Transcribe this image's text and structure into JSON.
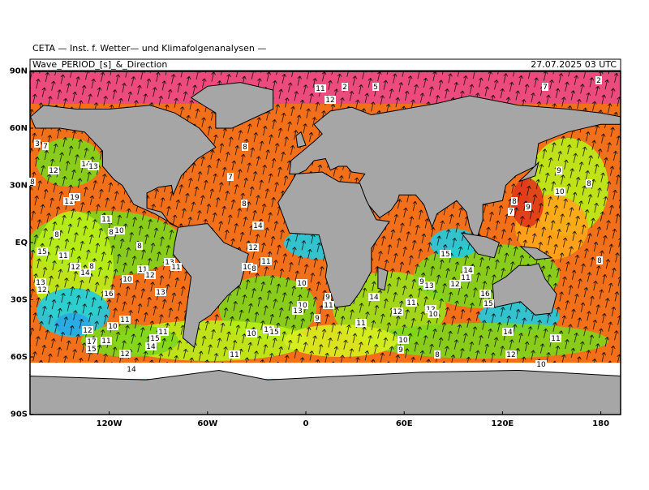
{
  "header": {
    "title": "CETA — Inst. f. Wetter— und Klimafolgenanalysen —",
    "field": "Wave_PERIOD_[s]_&_Direction",
    "time": "27.07.2025 03 UTC"
  },
  "axes": {
    "lat": [
      "90N",
      "60N",
      "30N",
      "EQ",
      "30S",
      "60S",
      "90S"
    ],
    "lon": [
      "120W",
      "60W",
      "0",
      "60E",
      "120E",
      "180"
    ]
  },
  "map": {
    "labels": [
      "2",
      "5",
      "2",
      "11",
      "12",
      "7",
      "3",
      "7",
      "8",
      "12",
      "14",
      "13",
      "7",
      "9",
      "8",
      "8",
      "10",
      "11",
      "19",
      "8",
      "8",
      "9",
      "7",
      "11",
      "14",
      "10",
      "8",
      "8",
      "8",
      "12",
      "15",
      "11",
      "15",
      "13",
      "11",
      "12",
      "8",
      "14",
      "10",
      "8",
      "11",
      "11",
      "12",
      "14",
      "11",
      "8",
      "13",
      "12",
      "10",
      "9",
      "13",
      "12",
      "10",
      "13",
      "16",
      "16",
      "14",
      "15",
      "9",
      "11",
      "10",
      "13",
      "11",
      "12",
      "10",
      "12",
      "9",
      "11",
      "10",
      "12",
      "11",
      "11",
      "11",
      "15",
      "10",
      "15",
      "14",
      "10",
      "11",
      "17",
      "11",
      "15",
      "14",
      "9",
      "8",
      "12",
      "11",
      "12",
      "10",
      "14"
    ]
  }
}
